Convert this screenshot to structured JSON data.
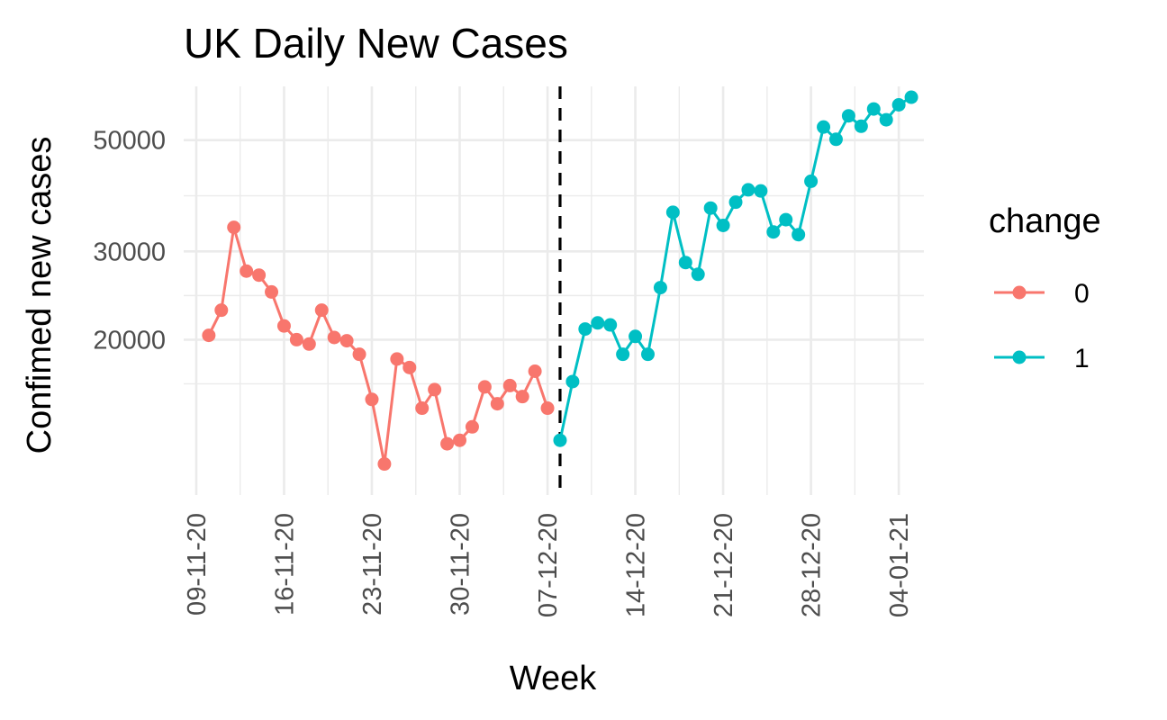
{
  "chart_data": {
    "type": "line",
    "title": "UK Daily New Cases",
    "xlabel": "Week",
    "ylabel": "Confimed new cases",
    "y_scale": "log10",
    "ylim": [
      9800,
      64000
    ],
    "xlim": [
      "2020-11-08",
      "2021-01-06"
    ],
    "y_ticks": [
      20000,
      30000,
      50000
    ],
    "y_tick_labels": [
      "20000",
      "30000",
      "50000"
    ],
    "x_ticks": [
      "2020-11-09",
      "2020-11-16",
      "2020-11-23",
      "2020-11-30",
      "2020-12-07",
      "2020-12-14",
      "2020-12-21",
      "2020-12-28",
      "2021-01-04"
    ],
    "x_tick_labels": [
      "09-11-20",
      "16-11-20",
      "23-11-20",
      "30-11-20",
      "07-12-20",
      "14-12-20",
      "21-12-20",
      "28-12-20",
      "04-01-21"
    ],
    "vline": "2020-12-08",
    "grid": true,
    "legend": {
      "title": "change",
      "position": "right"
    },
    "series": [
      {
        "name": "0",
        "color": "#F8766D",
        "points": [
          [
            "2020-11-10",
            20400
          ],
          [
            "2020-11-11",
            22900
          ],
          [
            "2020-11-12",
            33500
          ],
          [
            "2020-11-13",
            27400
          ],
          [
            "2020-11-14",
            26900
          ],
          [
            "2020-11-15",
            24900
          ],
          [
            "2020-11-16",
            21300
          ],
          [
            "2020-11-17",
            20000
          ],
          [
            "2020-11-18",
            19600
          ],
          [
            "2020-11-19",
            22900
          ],
          [
            "2020-11-20",
            20200
          ],
          [
            "2020-11-21",
            19900
          ],
          [
            "2020-11-22",
            18700
          ],
          [
            "2020-11-23",
            15200
          ],
          [
            "2020-11-24",
            11300
          ],
          [
            "2020-11-25",
            18300
          ],
          [
            "2020-11-26",
            17600
          ],
          [
            "2020-11-27",
            14600
          ],
          [
            "2020-11-28",
            15900
          ],
          [
            "2020-11-29",
            12400
          ],
          [
            "2020-11-30",
            12600
          ],
          [
            "2020-12-01",
            13400
          ],
          [
            "2020-12-02",
            16100
          ],
          [
            "2020-12-03",
            14900
          ],
          [
            "2020-12-04",
            16200
          ],
          [
            "2020-12-05",
            15400
          ],
          [
            "2020-12-06",
            17300
          ],
          [
            "2020-12-07",
            14600
          ]
        ]
      },
      {
        "name": "1",
        "color": "#00BFC4",
        "points": [
          [
            "2020-12-08",
            12600
          ],
          [
            "2020-12-09",
            16500
          ],
          [
            "2020-12-10",
            21000
          ],
          [
            "2020-12-11",
            21600
          ],
          [
            "2020-12-12",
            21400
          ],
          [
            "2020-12-13",
            18700
          ],
          [
            "2020-12-14",
            20300
          ],
          [
            "2020-12-15",
            18700
          ],
          [
            "2020-12-16",
            25400
          ],
          [
            "2020-12-17",
            35900
          ],
          [
            "2020-12-18",
            28500
          ],
          [
            "2020-12-19",
            27000
          ],
          [
            "2020-12-20",
            36600
          ],
          [
            "2020-12-21",
            33800
          ],
          [
            "2020-12-22",
            37600
          ],
          [
            "2020-12-23",
            39800
          ],
          [
            "2020-12-24",
            39600
          ],
          [
            "2020-12-25",
            32800
          ],
          [
            "2020-12-26",
            34700
          ],
          [
            "2020-12-27",
            32400
          ],
          [
            "2020-12-28",
            41400
          ],
          [
            "2020-12-29",
            53100
          ],
          [
            "2020-12-30",
            50200
          ],
          [
            "2020-12-31",
            55900
          ],
          [
            "2021-01-01",
            53300
          ],
          [
            "2021-01-02",
            57700
          ],
          [
            "2021-01-03",
            54900
          ],
          [
            "2021-01-04",
            58800
          ],
          [
            "2021-01-05",
            60900
          ]
        ]
      }
    ]
  }
}
